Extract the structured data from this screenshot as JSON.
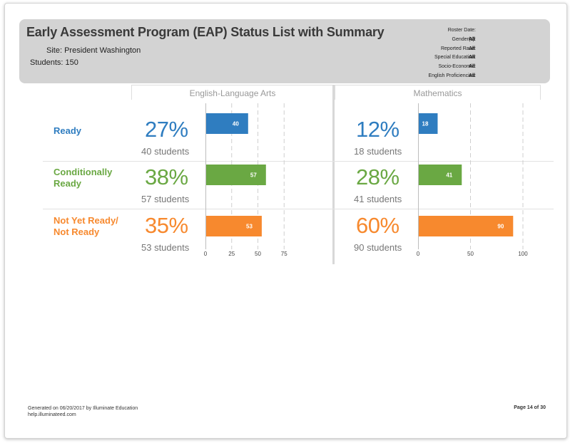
{
  "header": {
    "title": "Early Assessment Program (EAP) Status List with Summary",
    "site_label": "Site:",
    "site_value": "President Washington",
    "students_label": "Students:",
    "students_value": "150"
  },
  "filters": [
    {
      "label": "Roster Date:",
      "value": ""
    },
    {
      "label": "Gender(s):",
      "value": "All"
    },
    {
      "label": "Reported Race:",
      "value": "All"
    },
    {
      "label": "Special Education:",
      "value": "All"
    },
    {
      "label": "Socio-Economic:",
      "value": "All"
    },
    {
      "label": "English Proficiencies:",
      "value": "All"
    }
  ],
  "subjects": [
    {
      "name": "English-Language Arts",
      "rows": [
        {
          "pct": "27%",
          "count": "40 students"
        },
        {
          "pct": "38%",
          "count": "57 students"
        },
        {
          "pct": "35%",
          "count": "53 students"
        }
      ]
    },
    {
      "name": "Mathematics",
      "rows": [
        {
          "pct": "12%",
          "count": "18 students"
        },
        {
          "pct": "28%",
          "count": "41 students"
        },
        {
          "pct": "60%",
          "count": "90 students"
        }
      ]
    }
  ],
  "categories": [
    {
      "line1": "Ready",
      "line2": "",
      "color": "#2f7dc0"
    },
    {
      "line1": "Conditionally",
      "line2": "Ready",
      "color": "#6aa843"
    },
    {
      "line1": "Not Yet Ready/",
      "line2": "Not Ready",
      "color": "#f7892e"
    }
  ],
  "chart_data": [
    {
      "type": "bar",
      "orientation": "horizontal",
      "categories": [
        "Ready",
        "Conditionally Ready",
        "Not Yet Ready/Not Ready"
      ],
      "values": [
        40,
        57,
        53
      ],
      "colors": [
        "#2f7dc0",
        "#6aa843",
        "#f7892e"
      ],
      "xlim": [
        0,
        100
      ],
      "ticks": [
        0,
        25,
        50,
        75
      ],
      "grid": true
    },
    {
      "type": "bar",
      "orientation": "horizontal",
      "categories": [
        "Ready",
        "Conditionally Ready",
        "Not Yet Ready/Not Ready"
      ],
      "values": [
        18,
        41,
        90
      ],
      "colors": [
        "#2f7dc0",
        "#6aa843",
        "#f7892e"
      ],
      "xlim": [
        0,
        100
      ],
      "ticks": [
        0,
        50,
        100
      ],
      "grid": true
    }
  ],
  "footer": {
    "generated": "Generated on 06/20/2017 by Illuminate Education",
    "help": "help.illuminateed.com",
    "page": "Page 14 of 30"
  }
}
